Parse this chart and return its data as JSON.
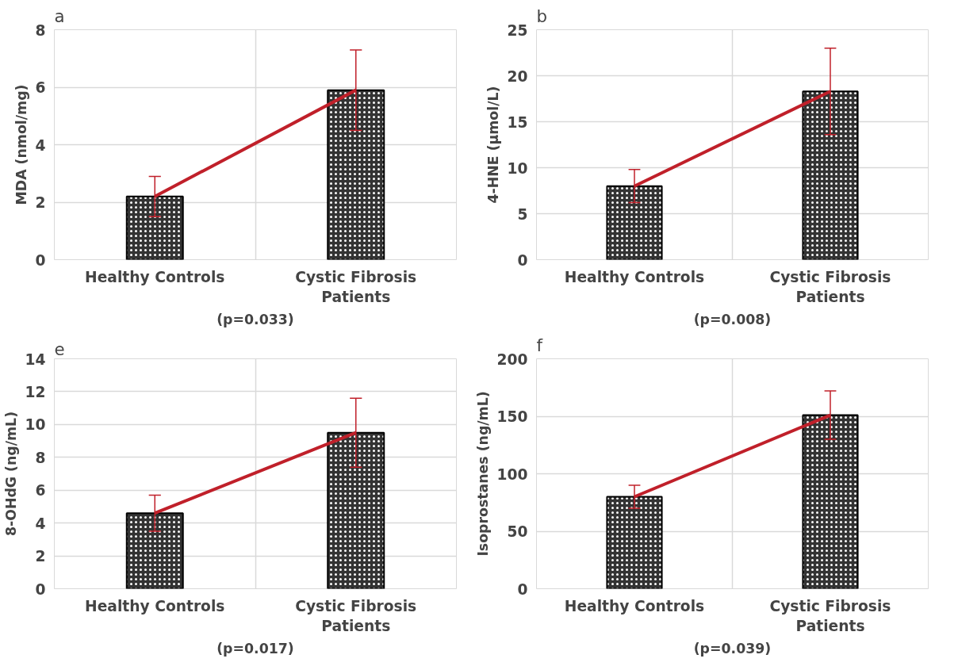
{
  "chart_data": [
    {
      "type": "bar",
      "title": "a",
      "ylabel": "MDA (nmol/mg)",
      "xlabel": "(p=0.033)",
      "categories": [
        "Healthy Controls",
        "Cystic Fibrosis Patients"
      ],
      "ylim": [
        0,
        8
      ],
      "yticks": [
        0,
        2,
        4,
        6,
        8
      ],
      "grid": true,
      "series": [
        {
          "color": "#333333",
          "values": [
            2.2,
            5.9
          ]
        },
        {
          "type": "line",
          "color": "#c0202a",
          "values": [
            2.2,
            5.9
          ],
          "errors": [
            0.7,
            1.4
          ]
        }
      ]
    },
    {
      "type": "bar",
      "title": "b",
      "ylabel": "4-HNE (µmol/L)",
      "xlabel": "(p=0.008)",
      "categories": [
        "Healthy Controls",
        "Cystic Fibrosis Patients"
      ],
      "ylim": [
        0,
        25
      ],
      "yticks": [
        0,
        5,
        10,
        15,
        20,
        25
      ],
      "grid": true,
      "series": [
        {
          "color": "#333333",
          "values": [
            8.0,
            18.3
          ]
        },
        {
          "type": "line",
          "color": "#c0202a",
          "values": [
            8.0,
            18.3
          ],
          "errors": [
            1.8,
            4.7
          ]
        }
      ]
    },
    {
      "type": "bar",
      "title": "e",
      "ylabel": "8-OHdG (ng/mL)",
      "xlabel": "(p=0.017)",
      "categories": [
        "Healthy Controls",
        "Cystic Fibrosis Patients"
      ],
      "ylim": [
        0,
        14
      ],
      "yticks": [
        0,
        2,
        4,
        6,
        8,
        10,
        12,
        14
      ],
      "grid": true,
      "series": [
        {
          "color": "#333333",
          "values": [
            4.6,
            9.5
          ]
        },
        {
          "type": "line",
          "color": "#c0202a",
          "values": [
            4.6,
            9.5
          ],
          "errors": [
            1.1,
            2.1
          ]
        }
      ]
    },
    {
      "type": "bar",
      "title": "f",
      "ylabel": "Isoprostanes (ng/mL)",
      "xlabel": "(p=0.039)",
      "categories": [
        "Healthy Controls",
        "Cystic Fibrosis Patients"
      ],
      "ylim": [
        0,
        200
      ],
      "yticks": [
        0,
        50,
        100,
        150,
        200
      ],
      "grid": true,
      "series": [
        {
          "color": "#333333",
          "values": [
            80,
            151
          ]
        },
        {
          "type": "line",
          "color": "#c0202a",
          "values": [
            80,
            151
          ],
          "errors": [
            10,
            21
          ]
        }
      ]
    }
  ]
}
